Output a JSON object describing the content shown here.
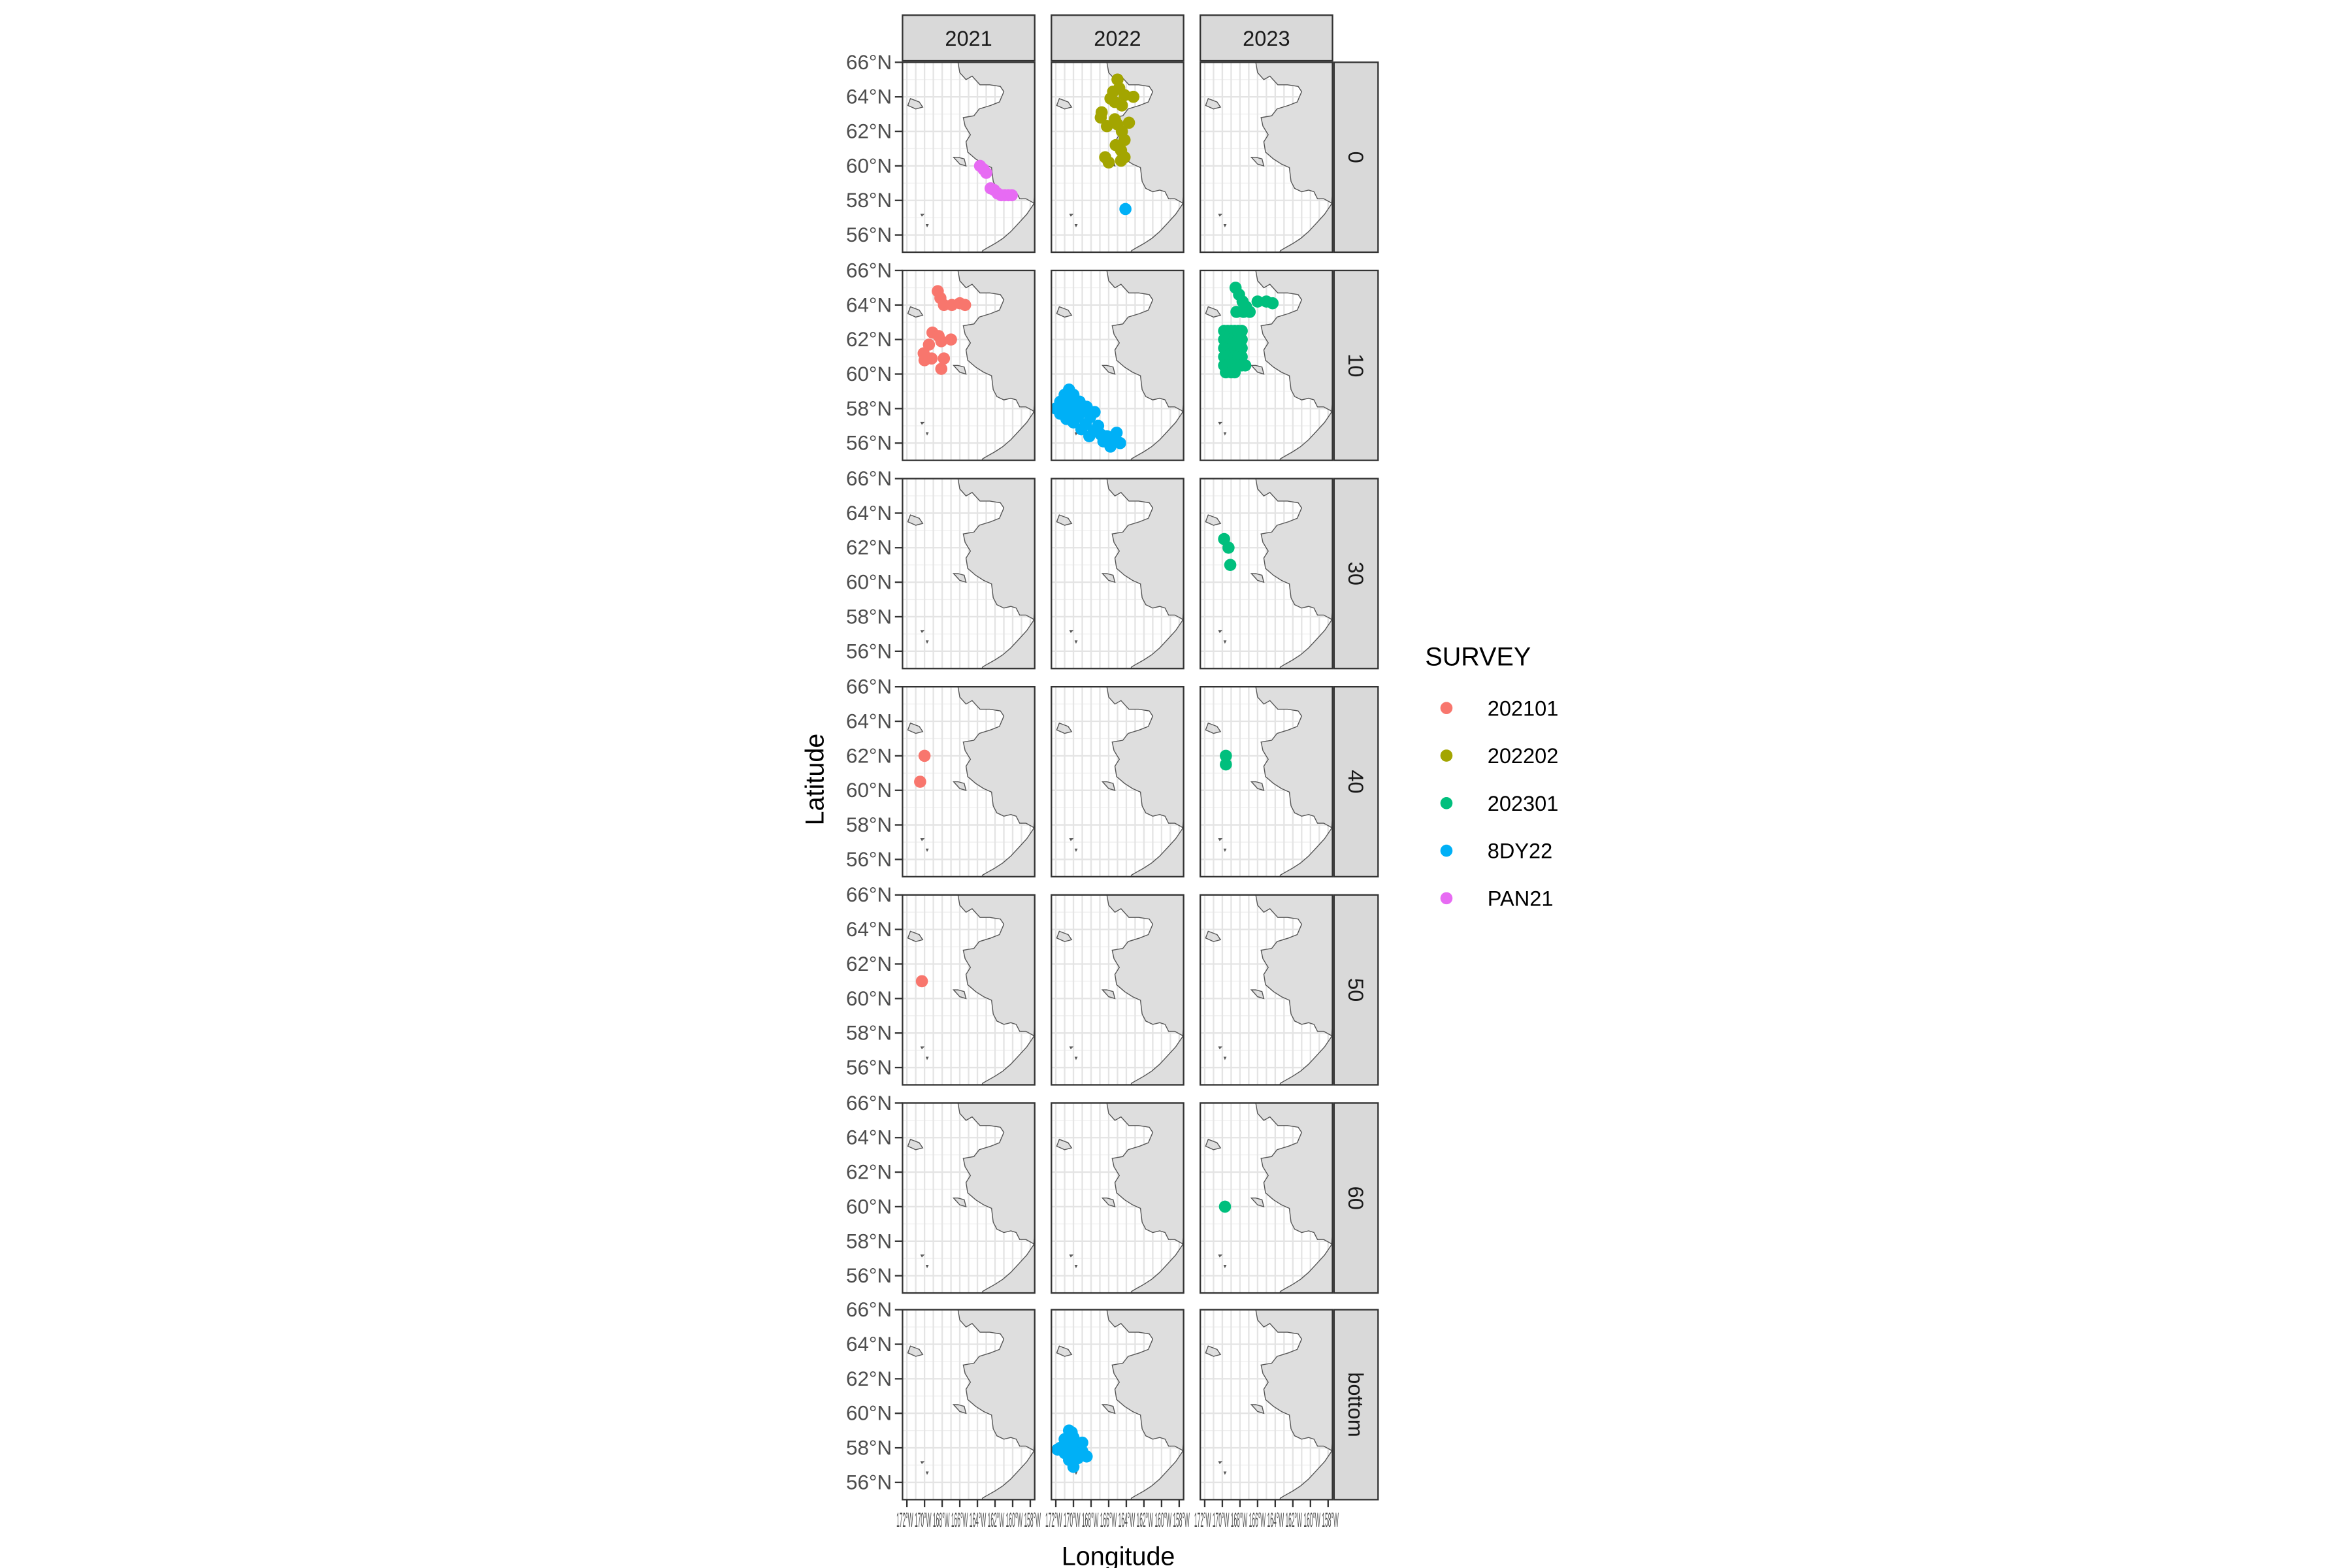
{
  "chart_data": {
    "type": "scatter",
    "facet_columns": [
      "2021",
      "2022",
      "2023"
    ],
    "facet_rows": [
      "0",
      "10",
      "30",
      "40",
      "50",
      "60",
      "bottom"
    ],
    "xlabel": "Longitude",
    "ylabel": "Latitude",
    "ylim": [
      55,
      66
    ],
    "y_ticks": [
      "56°N",
      "58°N",
      "60°N",
      "62°N",
      "64°N",
      "66°N"
    ],
    "x_tick_labels_overlapping": "172°W 170°W 168°W 166°W 164°W 162°W 160°W 158°W",
    "legend": {
      "title": "SURVEY",
      "position": "right",
      "entries": [
        {
          "name": "202101",
          "color": "#F8766D"
        },
        {
          "name": "202202",
          "color": "#A3A500"
        },
        {
          "name": "202301",
          "color": "#00BF7D"
        },
        {
          "name": "8DY22",
          "color": "#00B0F6"
        },
        {
          "name": "PAN21",
          "color": "#E76BF3"
        }
      ]
    },
    "grid": true,
    "series": [
      {
        "survey": "PAN21",
        "year": "2021",
        "depth": "0",
        "points": [
          [
            163.7,
            60.0
          ],
          [
            163.3,
            59.8
          ],
          [
            163.0,
            59.6
          ],
          [
            162.5,
            58.7
          ],
          [
            162.1,
            58.6
          ],
          [
            161.7,
            58.4
          ],
          [
            161.3,
            58.3
          ],
          [
            160.9,
            58.3
          ],
          [
            160.5,
            58.3
          ],
          [
            160.1,
            58.3
          ]
        ]
      },
      {
        "survey": "202202",
        "year": "2022",
        "depth": "0",
        "points": [
          [
            165.0,
            65.0
          ],
          [
            164.8,
            64.5
          ],
          [
            165.5,
            64.3
          ],
          [
            165.8,
            63.9
          ],
          [
            164.2,
            64.1
          ],
          [
            163.2,
            64.0
          ],
          [
            165.3,
            63.7
          ],
          [
            164.5,
            63.5
          ],
          [
            166.8,
            63.1
          ],
          [
            166.9,
            62.8
          ],
          [
            165.3,
            62.7
          ],
          [
            163.7,
            62.5
          ],
          [
            166.2,
            62.3
          ],
          [
            165.0,
            62.4
          ],
          [
            164.5,
            62.0
          ],
          [
            164.2,
            61.5
          ],
          [
            165.2,
            61.2
          ],
          [
            164.6,
            60.9
          ],
          [
            164.2,
            60.5
          ],
          [
            164.6,
            60.3
          ],
          [
            166.4,
            60.5
          ],
          [
            166.0,
            60.2
          ]
        ]
      },
      {
        "survey": "8DY22",
        "year": "2022",
        "depth": "0",
        "points": [
          [
            164.1,
            57.5
          ]
        ]
      },
      {
        "survey": "202101",
        "year": "2021",
        "depth": "10",
        "points": [
          [
            168.5,
            64.8
          ],
          [
            168.2,
            64.4
          ],
          [
            167.8,
            64.0
          ],
          [
            166.9,
            64.0
          ],
          [
            166.0,
            64.1
          ],
          [
            165.4,
            64.0
          ],
          [
            169.1,
            62.4
          ],
          [
            168.4,
            62.2
          ],
          [
            169.5,
            61.7
          ],
          [
            168.1,
            61.9
          ],
          [
            167.0,
            62.0
          ],
          [
            170.0,
            60.8
          ],
          [
            169.2,
            60.9
          ],
          [
            167.8,
            60.9
          ],
          [
            168.1,
            60.3
          ],
          [
            170.1,
            61.2
          ]
        ]
      },
      {
        "survey": "8DY22",
        "year": "2022",
        "depth": "10",
        "points": [
          [
            172.0,
            58.0
          ],
          [
            171.5,
            58.4
          ],
          [
            171.0,
            58.8
          ],
          [
            170.5,
            59.1
          ],
          [
            171.5,
            57.7
          ],
          [
            171.0,
            58.1
          ],
          [
            170.5,
            58.5
          ],
          [
            170.0,
            58.8
          ],
          [
            170.8,
            57.4
          ],
          [
            170.3,
            57.8
          ],
          [
            169.8,
            58.1
          ],
          [
            169.3,
            58.4
          ],
          [
            170.0,
            57.2
          ],
          [
            169.5,
            57.5
          ],
          [
            169.0,
            57.8
          ],
          [
            168.5,
            58.1
          ],
          [
            169.1,
            56.8
          ],
          [
            168.6,
            57.1
          ],
          [
            168.1,
            57.5
          ],
          [
            167.6,
            57.8
          ],
          [
            168.2,
            56.4
          ],
          [
            167.7,
            56.7
          ],
          [
            167.2,
            57.0
          ],
          [
            166.9,
            56.5
          ],
          [
            166.6,
            56.1
          ],
          [
            166.2,
            56.4
          ],
          [
            165.8,
            55.8
          ],
          [
            165.6,
            56.3
          ],
          [
            165.1,
            56.6
          ],
          [
            164.7,
            56.0
          ]
        ]
      },
      {
        "survey": "202301",
        "year": "2023",
        "depth": "10",
        "points": [
          [
            168.5,
            65.0
          ],
          [
            168.1,
            64.6
          ],
          [
            167.7,
            64.2
          ],
          [
            167.3,
            63.9
          ],
          [
            166.9,
            63.6
          ],
          [
            166.0,
            64.2
          ],
          [
            165.0,
            64.2
          ],
          [
            164.3,
            64.1
          ],
          [
            168.4,
            63.6
          ],
          [
            167.6,
            63.6
          ],
          [
            169.8,
            62.5
          ],
          [
            169.4,
            62.5
          ],
          [
            169.0,
            62.5
          ],
          [
            168.6,
            62.5
          ],
          [
            168.2,
            62.5
          ],
          [
            167.8,
            62.5
          ],
          [
            169.8,
            62.0
          ],
          [
            169.4,
            62.0
          ],
          [
            169.0,
            62.0
          ],
          [
            168.6,
            62.0
          ],
          [
            168.2,
            62.0
          ],
          [
            167.8,
            62.0
          ],
          [
            169.8,
            61.5
          ],
          [
            169.4,
            61.5
          ],
          [
            169.0,
            61.5
          ],
          [
            168.6,
            61.5
          ],
          [
            168.2,
            61.5
          ],
          [
            167.8,
            61.5
          ],
          [
            169.8,
            61.0
          ],
          [
            169.4,
            61.0
          ],
          [
            169.0,
            61.0
          ],
          [
            168.6,
            61.0
          ],
          [
            168.2,
            61.0
          ],
          [
            167.8,
            61.0
          ],
          [
            169.8,
            60.5
          ],
          [
            169.4,
            60.5
          ],
          [
            169.0,
            60.5
          ],
          [
            168.6,
            60.5
          ],
          [
            168.2,
            60.5
          ],
          [
            167.8,
            60.5
          ],
          [
            167.4,
            60.5
          ],
          [
            169.6,
            60.1
          ],
          [
            169.0,
            60.1
          ],
          [
            168.6,
            60.1
          ]
        ]
      },
      {
        "survey": "202301",
        "year": "2023",
        "depth": "30",
        "points": [
          [
            169.8,
            62.5
          ],
          [
            169.3,
            62.0
          ],
          [
            169.1,
            61.0
          ]
        ]
      },
      {
        "survey": "202101",
        "year": "2021",
        "depth": "40",
        "points": [
          [
            170.0,
            62.0
          ],
          [
            170.5,
            60.5
          ]
        ]
      },
      {
        "survey": "202301",
        "year": "2023",
        "depth": "40",
        "points": [
          [
            169.6,
            62.0
          ],
          [
            169.6,
            61.5
          ]
        ]
      },
      {
        "survey": "202101",
        "year": "2021",
        "depth": "50",
        "points": [
          [
            170.3,
            61.0
          ]
        ]
      },
      {
        "survey": "202301",
        "year": "2023",
        "depth": "60",
        "points": [
          [
            169.7,
            60.0
          ]
        ]
      },
      {
        "survey": "8DY22",
        "year": "2022",
        "depth": "bottom",
        "points": [
          [
            170.5,
            59.0
          ],
          [
            170.0,
            58.6
          ],
          [
            169.5,
            58.2
          ],
          [
            169.0,
            57.8
          ],
          [
            168.5,
            57.5
          ],
          [
            171.0,
            58.5
          ],
          [
            170.5,
            58.2
          ],
          [
            170.0,
            57.8
          ],
          [
            169.5,
            57.4
          ],
          [
            171.5,
            58.0
          ],
          [
            171.0,
            57.7
          ],
          [
            170.5,
            57.3
          ],
          [
            170.0,
            56.9
          ],
          [
            171.8,
            57.9
          ],
          [
            169.0,
            58.3
          ],
          [
            170.2,
            58.9
          ]
        ]
      }
    ]
  }
}
